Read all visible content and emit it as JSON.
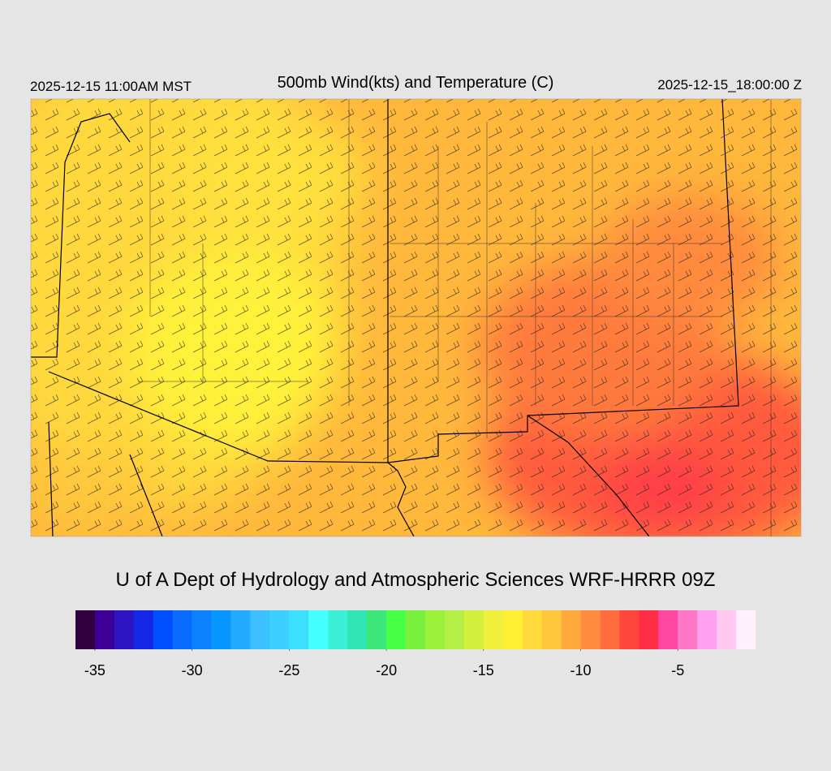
{
  "header": {
    "left": "2025-12-15 11:00AM MST",
    "title": "500mb Wind(kts) and Temperature (C)",
    "right": "2025-12-15_18:00:00 Z"
  },
  "credit": "U of A Dept of Hydrology and Atmospheric Sciences WRF-HRRR 09Z",
  "colorbar": {
    "range": [
      -36,
      -1
    ],
    "ticks": [
      -35,
      -30,
      -25,
      -20,
      -15,
      -10,
      -5
    ],
    "colors": [
      "#33003f",
      "#3c0096",
      "#2d16c2",
      "#1428e6",
      "#0050ff",
      "#0a6cff",
      "#0a82ff",
      "#0a96ff",
      "#22aaff",
      "#3cc0ff",
      "#3ccfff",
      "#3ce0ff",
      "#46ffff",
      "#3cf0d8",
      "#32e6b4",
      "#3ce678",
      "#46ff46",
      "#78f03c",
      "#9bf03c",
      "#b4f046",
      "#d2f03c",
      "#f0f03c",
      "#fff032",
      "#ffdc3c",
      "#ffc83c",
      "#ffaa3c",
      "#ff8c3c",
      "#ff6e3c",
      "#ff463c",
      "#ff2d46",
      "#ff46a0",
      "#ff78c8",
      "#ffa0f0",
      "#ffc8f0",
      "#fff0fc"
    ]
  }
}
